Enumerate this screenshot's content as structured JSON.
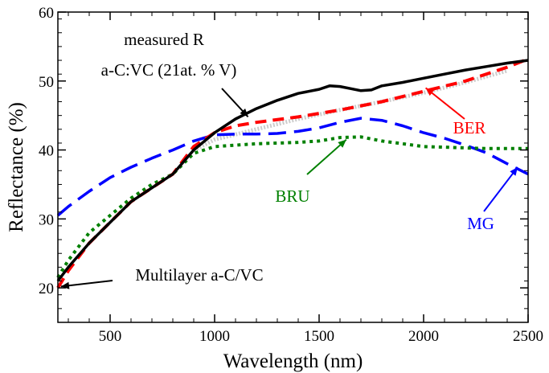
{
  "chart_data": {
    "type": "line",
    "xlabel": "Wavelength (nm)",
    "ylabel": "Reflectance (%)",
    "xlim": [
      250,
      2500
    ],
    "ylim": [
      15,
      60
    ],
    "xticks": [
      500,
      1000,
      1500,
      2000,
      2500
    ],
    "yticks": [
      20,
      30,
      40,
      50,
      60
    ],
    "grid": false,
    "series": [
      {
        "name": "measured R",
        "color": "#000000",
        "style": "solid",
        "x": [
          250,
          300,
          400,
          500,
          600,
          700,
          800,
          900,
          1000,
          1100,
          1200,
          1300,
          1400,
          1500,
          1550,
          1600,
          1650,
          1700,
          1750,
          1800,
          1900,
          2000,
          2100,
          2200,
          2300,
          2400,
          2500
        ],
        "y": [
          21,
          23,
          26.5,
          29.5,
          32.5,
          34.5,
          36.5,
          40,
          42.5,
          44.5,
          46,
          47.2,
          48.2,
          48.8,
          49.3,
          49.2,
          48.9,
          48.6,
          48.7,
          49.3,
          49.8,
          50.4,
          51,
          51.6,
          52.1,
          52.6,
          53
        ]
      },
      {
        "name": "BER",
        "color": "#ff0000",
        "style": "dashed",
        "x": [
          250,
          300,
          400,
          500,
          600,
          700,
          800,
          900,
          1000,
          1100,
          1200,
          1400,
          1600,
          1800,
          2000,
          2200,
          2400,
          2500
        ],
        "y": [
          20,
          22.5,
          26.5,
          29.5,
          32.5,
          34.5,
          36.5,
          40.5,
          42.5,
          43.5,
          44,
          44.8,
          45.8,
          47,
          48.5,
          50,
          52,
          53.2
        ]
      },
      {
        "name": "BRU",
        "color": "#008000",
        "style": "dotted",
        "x": [
          250,
          300,
          400,
          500,
          600,
          700,
          800,
          900,
          1000,
          1100,
          1200,
          1300,
          1400,
          1500,
          1600,
          1700,
          1800,
          1900,
          2000,
          2100,
          2200,
          2300,
          2400,
          2500
        ],
        "y": [
          21.5,
          24,
          28,
          30.5,
          33,
          35,
          36.5,
          39.5,
          40.5,
          40.7,
          40.9,
          41,
          41.1,
          41.3,
          41.8,
          41.9,
          41.3,
          40.9,
          40.5,
          40.4,
          40.3,
          40.2,
          40.2,
          40.2
        ]
      },
      {
        "name": "MG",
        "color": "#0000ff",
        "style": "dashed",
        "x": [
          250,
          300,
          400,
          500,
          600,
          700,
          800,
          900,
          1000,
          1100,
          1200,
          1300,
          1400,
          1500,
          1600,
          1700,
          1800,
          1900,
          2000,
          2100,
          2200,
          2300,
          2400,
          2500
        ],
        "y": [
          30.5,
          31.8,
          34,
          36,
          37.5,
          38.8,
          40,
          41.3,
          42.2,
          42.3,
          42.3,
          42.4,
          42.7,
          43.2,
          44,
          44.6,
          44.3,
          43.5,
          42.5,
          41.7,
          40.7,
          39.6,
          38,
          36.5
        ]
      },
      {
        "name": "Multilayer a-C/VC",
        "color": "#cccccc",
        "style": "dotted",
        "x": [
          900,
          1000,
          1200,
          1400,
          1600,
          1800,
          2000,
          2200,
          2400
        ],
        "y": [
          40,
          41.5,
          43,
          44.5,
          45.8,
          47,
          48.3,
          49.8,
          51.5
        ]
      }
    ],
    "annotations": [
      {
        "id": "measured",
        "text": [
          "measured R",
          "a-C:VC (21at. % V)"
        ],
        "color": "#000000",
        "at": [
          1160,
          44.8
        ]
      },
      {
        "id": "ber",
        "text": [
          "BER"
        ],
        "color": "#ff0000",
        "at": [
          2010,
          49
        ]
      },
      {
        "id": "bru",
        "text": [
          "BRU"
        ],
        "color": "#008000",
        "at": [
          1630,
          41.5
        ]
      },
      {
        "id": "mg",
        "text": [
          "MG"
        ],
        "color": "#0000ff",
        "at": [
          2450,
          37.5
        ]
      },
      {
        "id": "multilayer",
        "text": [
          "Multilayer a-C/VC"
        ],
        "color": "#000000",
        "at": [
          265,
          20.2
        ]
      }
    ]
  }
}
